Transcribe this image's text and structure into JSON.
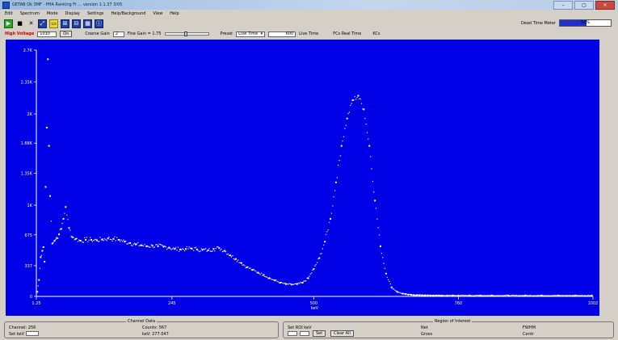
{
  "window": {
    "title": "GETAB  Ok 3MF · PHA Ranking Fr ... version 1.1.37 3/05",
    "buttons": [
      "–",
      "▢",
      "✕"
    ]
  },
  "menu": [
    "Edit",
    "Spectrum",
    "Mode",
    "Display",
    "Settings",
    "Help/Background",
    "View",
    "Help"
  ],
  "toolbar": {
    "icons": [
      "play-icon",
      "stop-icon",
      "clear-icon",
      "zoom-icon",
      "region-icon",
      "compare-icon",
      "export-icon",
      "grid-icon",
      "info-icon"
    ]
  },
  "dead_time": {
    "label": "Dead Time Meter",
    "value": 0.52,
    "text": "52%"
  },
  "controls": {
    "hv_label": "High Voltage",
    "hv_value": "1010",
    "hv_button": "On",
    "coarse_label": "Coarse Gain",
    "coarse_value": "2",
    "fine_label": "Fine Gain = 1.75",
    "fine_value": 0.45,
    "preset_label": "Preset",
    "preset_mode": "Live Time",
    "preset_value": "600",
    "live_label": "Live Time",
    "real_label": "FCs  Real Time",
    "kcs_label": "KCs"
  },
  "chart_data": {
    "type": "scatter",
    "xlabel": "keV",
    "ylabel": "",
    "xlim": [
      1.25,
      1002
    ],
    "ylim": [
      0,
      2700
    ],
    "yticks": [
      0,
      337,
      675,
      1000,
      1350,
      1680,
      2000,
      2350,
      2700
    ],
    "yticklabels": [
      "0",
      "337",
      "675",
      "1K",
      "1.35K",
      "1.68K",
      "2K",
      "2.35K",
      "2.7K"
    ],
    "xticks": [
      1.25,
      245,
      500,
      760,
      1002
    ],
    "xticklabels": [
      "1.25",
      "245",
      "500",
      "760",
      "1002"
    ],
    "series": [
      {
        "x": [
          3,
          6,
          9,
          12,
          14,
          16,
          18,
          20,
          22,
          24,
          26,
          30,
          34,
          38,
          42,
          46,
          50,
          54,
          60,
          66,
          72,
          80,
          90,
          100,
          110,
          120,
          130,
          140,
          150,
          160,
          170,
          180,
          190,
          200,
          210,
          220,
          230,
          240,
          250,
          260,
          270,
          280,
          290,
          300,
          310,
          320,
          330,
          340,
          350,
          360,
          370,
          380,
          390,
          400,
          410,
          420,
          430,
          440,
          450,
          460,
          470,
          480,
          490,
          500,
          510,
          520,
          530,
          540,
          550,
          560,
          570,
          580,
          590,
          600,
          610,
          620,
          630,
          640,
          650,
          660,
          665,
          670,
          675,
          680,
          685,
          690,
          695,
          700,
          705,
          710,
          715,
          720,
          725,
          730,
          740,
          750,
          760,
          780,
          800,
          820,
          850,
          880,
          910,
          940,
          970,
          1000
        ],
        "y": [
          50,
          180,
          430,
          500,
          540,
          380,
          1200,
          1850,
          2600,
          1650,
          1100,
          580,
          610,
          640,
          680,
          740,
          850,
          980,
          750,
          650,
          630,
          610,
          620,
          620,
          615,
          625,
          635,
          630,
          620,
          600,
          585,
          570,
          560,
          550,
          555,
          550,
          545,
          535,
          520,
          515,
          520,
          525,
          515,
          510,
          505,
          520,
          530,
          500,
          450,
          410,
          365,
          320,
          290,
          260,
          235,
          200,
          175,
          150,
          135,
          130,
          135,
          150,
          200,
          300,
          420,
          600,
          850,
          1250,
          1650,
          1950,
          2150,
          2200,
          2050,
          1650,
          1050,
          550,
          250,
          100,
          50,
          30,
          25,
          20,
          18,
          15,
          14,
          13,
          12,
          12,
          11,
          10,
          10,
          10,
          10,
          10,
          10,
          10,
          10,
          10,
          10,
          10,
          10,
          10,
          10,
          10,
          10,
          10
        ]
      }
    ]
  },
  "bottom": {
    "channel_data": {
      "title": "Channel Data",
      "channel_label": "Channel: 256",
      "counts_label": "Counts: 567",
      "set_label": "Set keV",
      "kev_label": "keV: 277.047"
    },
    "roi": {
      "title": "Region of Interest",
      "set_range_label": "Set ROI keV",
      "set_button": "Set",
      "clear_button": "Clear All",
      "net_label": "Net",
      "gross_label": "Gross",
      "fwhm_label": "FWHM",
      "centroid_label": "Centr"
    }
  }
}
